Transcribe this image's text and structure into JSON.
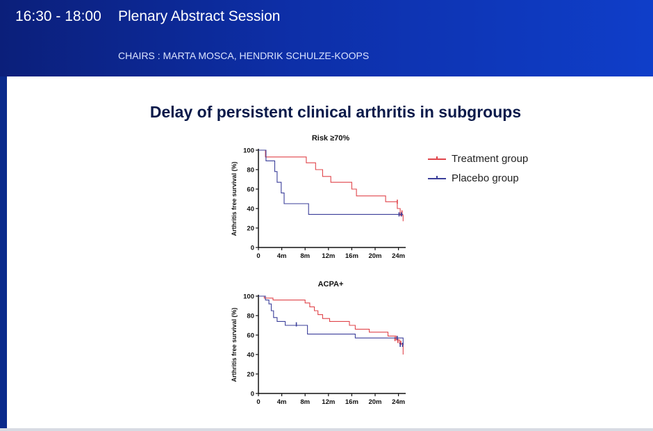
{
  "header": {
    "time": "16:30 - 18:00",
    "session_title": "Plenary Abstract Session",
    "chairs": "CHAIRS : MARTA MOSCA, HENDRIK SCHULZE-KOOPS"
  },
  "slide": {
    "title": "Delay of persistent clinical arthritis in subgroups"
  },
  "colors": {
    "treatment": "#e0444a",
    "placebo": "#3b3f9a",
    "header_bg": "#0d2fa8"
  },
  "legend": {
    "items": [
      {
        "label": "Treatment group",
        "color": "#e0444a"
      },
      {
        "label": "Placebo group",
        "color": "#3b3f9a"
      }
    ]
  },
  "chart_data": [
    {
      "type": "line",
      "subtype": "kaplan-meier step",
      "title": "Risk ≥70%",
      "ylabel": "Arthritis free survival (%)",
      "xlabel": "",
      "x_ticks": [
        "0",
        "4m",
        "8m",
        "12m",
        "16m",
        "20m",
        "24m"
      ],
      "y_ticks": [
        "0",
        "20",
        "40",
        "60",
        "80",
        "100"
      ],
      "xlim": [
        0,
        25
      ],
      "ylim": [
        0,
        100
      ],
      "series": [
        {
          "name": "Treatment group",
          "color": "#e0444a",
          "points": [
            [
              0,
              100
            ],
            [
              1.2,
              100
            ],
            [
              1.2,
              93
            ],
            [
              8.2,
              93
            ],
            [
              8.2,
              87
            ],
            [
              9.8,
              87
            ],
            [
              9.8,
              80
            ],
            [
              11,
              80
            ],
            [
              11,
              73
            ],
            [
              12.4,
              73
            ],
            [
              12.4,
              67
            ],
            [
              16,
              67
            ],
            [
              16,
              60
            ],
            [
              16.8,
              60
            ],
            [
              16.8,
              53
            ],
            [
              21.8,
              53
            ],
            [
              21.8,
              47
            ],
            [
              23.8,
              47
            ],
            [
              23.8,
              40
            ],
            [
              24.3,
              40
            ],
            [
              24.3,
              33
            ],
            [
              24.8,
              33
            ],
            [
              24.8,
              27
            ]
          ],
          "censor": [
            [
              23.8,
              47
            ],
            [
              24.6,
              36
            ]
          ]
        },
        {
          "name": "Placebo group",
          "color": "#3b3f9a",
          "points": [
            [
              0,
              100
            ],
            [
              1.3,
              100
            ],
            [
              1.3,
              89
            ],
            [
              2.8,
              89
            ],
            [
              2.8,
              78
            ],
            [
              3.2,
              78
            ],
            [
              3.2,
              67
            ],
            [
              3.9,
              67
            ],
            [
              3.9,
              56
            ],
            [
              4.4,
              56
            ],
            [
              4.4,
              45
            ],
            [
              8.6,
              45
            ],
            [
              8.6,
              34
            ],
            [
              24.8,
              34
            ]
          ],
          "censor": [
            [
              24.1,
              34
            ],
            [
              24.5,
              34
            ]
          ]
        }
      ]
    },
    {
      "type": "line",
      "subtype": "kaplan-meier step",
      "title": "ACPA+",
      "ylabel": "Arthritis free survival (%)",
      "xlabel": "",
      "x_ticks": [
        "0",
        "4m",
        "8m",
        "12m",
        "16m",
        "20m",
        "24m"
      ],
      "y_ticks": [
        "0",
        "20",
        "40",
        "60",
        "80",
        "100"
      ],
      "xlim": [
        0,
        25
      ],
      "ylim": [
        0,
        100
      ],
      "series": [
        {
          "name": "Treatment group",
          "color": "#e0444a",
          "points": [
            [
              0,
              100
            ],
            [
              1,
              100
            ],
            [
              1,
              98
            ],
            [
              2.5,
              98
            ],
            [
              2.5,
              96
            ],
            [
              8,
              96
            ],
            [
              8,
              93
            ],
            [
              8.8,
              93
            ],
            [
              8.8,
              89
            ],
            [
              9.6,
              89
            ],
            [
              9.6,
              85
            ],
            [
              10.2,
              85
            ],
            [
              10.2,
              81
            ],
            [
              11,
              81
            ],
            [
              11,
              77
            ],
            [
              12.2,
              77
            ],
            [
              12.2,
              74
            ],
            [
              15.6,
              74
            ],
            [
              15.6,
              70
            ],
            [
              16.6,
              70
            ],
            [
              16.6,
              66
            ],
            [
              19,
              66
            ],
            [
              19,
              63
            ],
            [
              22.2,
              63
            ],
            [
              22.2,
              59
            ],
            [
              23.6,
              59
            ],
            [
              23.6,
              55
            ],
            [
              24.2,
              55
            ],
            [
              24.2,
              51
            ],
            [
              24.8,
              51
            ],
            [
              24.8,
              40
            ]
          ],
          "censor": [
            [
              23.4,
              56
            ],
            [
              23.9,
              54
            ],
            [
              24.4,
              52
            ]
          ]
        },
        {
          "name": "Placebo group",
          "color": "#3b3f9a",
          "points": [
            [
              0,
              100
            ],
            [
              1.2,
              100
            ],
            [
              1.2,
              96
            ],
            [
              1.8,
              96
            ],
            [
              1.8,
              92
            ],
            [
              2.2,
              92
            ],
            [
              2.2,
              85
            ],
            [
              2.6,
              85
            ],
            [
              2.6,
              78
            ],
            [
              3.2,
              78
            ],
            [
              3.2,
              74
            ],
            [
              4.6,
              74
            ],
            [
              4.6,
              70
            ],
            [
              8.4,
              70
            ],
            [
              8.4,
              61
            ],
            [
              16.6,
              61
            ],
            [
              16.6,
              57
            ],
            [
              24.8,
              57
            ],
            [
              24.8,
              50
            ]
          ],
          "censor": [
            [
              6.5,
              71
            ],
            [
              23.8,
              57
            ],
            [
              24.3,
              50
            ],
            [
              24.7,
              50
            ]
          ]
        }
      ]
    }
  ]
}
